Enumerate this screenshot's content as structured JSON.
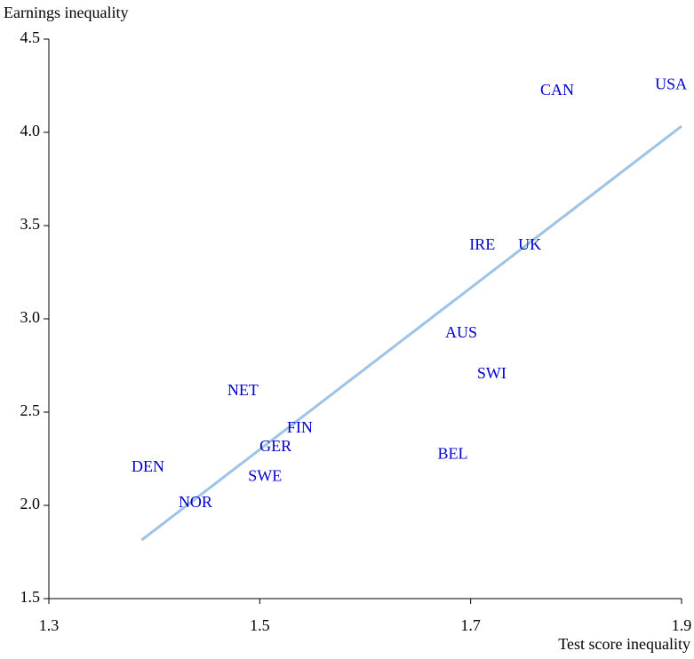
{
  "chart_data": {
    "type": "scatter",
    "ylabel": "Earnings inequality",
    "xlabel": "Test score inequality",
    "labels": [
      "USA",
      "CAN",
      "IRE",
      "UK",
      "AUS",
      "SWI",
      "NET",
      "FIN",
      "GER",
      "BEL",
      "DEN",
      "SWE",
      "NOR"
    ],
    "x": [
      1.89,
      1.782,
      1.711,
      1.756,
      1.691,
      1.72,
      1.484,
      1.538,
      1.515,
      1.683,
      1.394,
      1.505,
      1.439
    ],
    "values": [
      4.25,
      4.22,
      3.39,
      3.39,
      2.92,
      2.7,
      2.61,
      2.41,
      2.31,
      2.27,
      2.2,
      2.15,
      2.01
    ],
    "color": "#0000cc",
    "trend": {
      "x": [
        1.388,
        1.9
      ],
      "values": [
        1.814,
        4.033
      ],
      "color": "#9dc3e6"
    },
    "xlim": [
      1.3,
      1.9
    ],
    "xticks": [
      1.3,
      1.5,
      1.7,
      1.9
    ],
    "ylim": [
      1.5,
      4.5
    ],
    "yticks": [
      1.5,
      {
        "value": 2,
        "label": "2.0"
      },
      2.5,
      {
        "value": 3,
        "label": "3.0"
      },
      3.5,
      {
        "value": 4,
        "label": "4.0"
      },
      4.5
    ]
  }
}
